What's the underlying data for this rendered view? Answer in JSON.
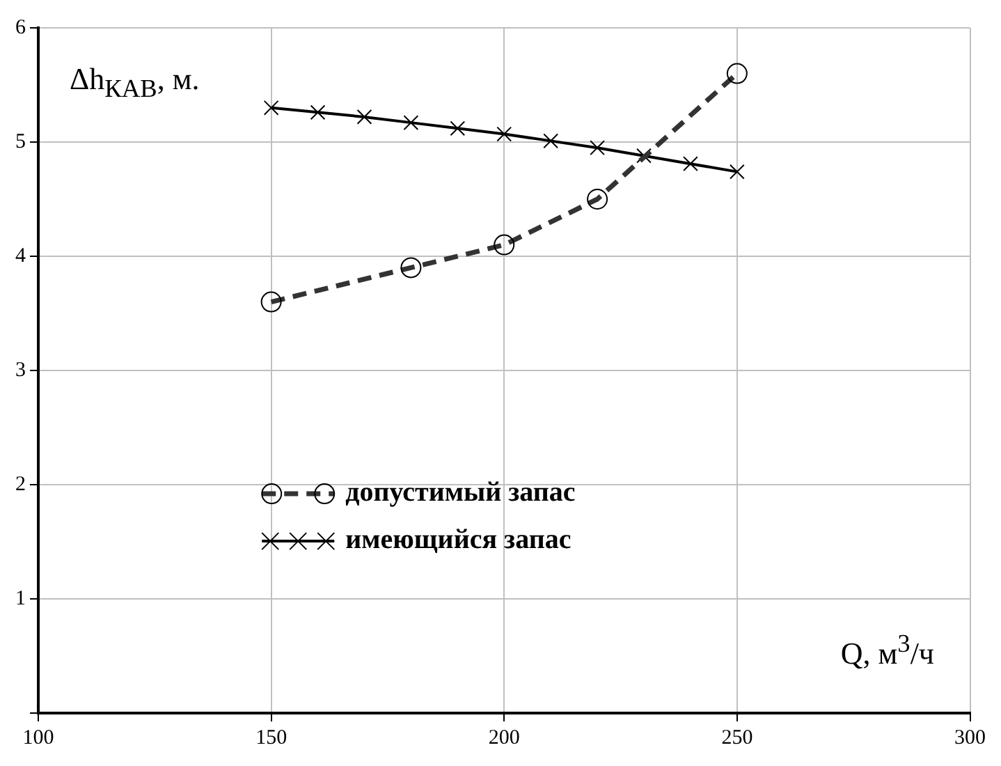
{
  "chart_data": {
    "type": "line",
    "xlabel": "Q, м$^{3}$/ч",
    "ylabel": "Δh$_{КАВ}$, м.",
    "xlim": [
      100,
      300
    ],
    "xticks": [
      100,
      150,
      200,
      250,
      300
    ],
    "ylim": [
      0,
      6
    ],
    "yticks": [
      {
        "value": 0,
        "label": null
      },
      1,
      2,
      3,
      4,
      5,
      6
    ],
    "grid": true,
    "legend": "bottom left",
    "series": [
      {
        "name": "допустимый запас",
        "color": "#333333",
        "line_style": "dashed",
        "marker": "circle",
        "x": [
          150,
          180,
          200,
          220,
          250
        ],
        "values": [
          3.6,
          3.9,
          4.1,
          4.5,
          5.6
        ]
      },
      {
        "name": "имеющийся запас",
        "color": "#000000",
        "line_style": "solid",
        "marker": "cross",
        "x": [
          150,
          160,
          170,
          180,
          190,
          200,
          210,
          220,
          230,
          240,
          250
        ],
        "values": [
          5.3,
          5.26,
          5.22,
          5.17,
          5.12,
          5.07,
          5.01,
          4.95,
          4.88,
          4.81,
          4.74
        ]
      }
    ]
  }
}
